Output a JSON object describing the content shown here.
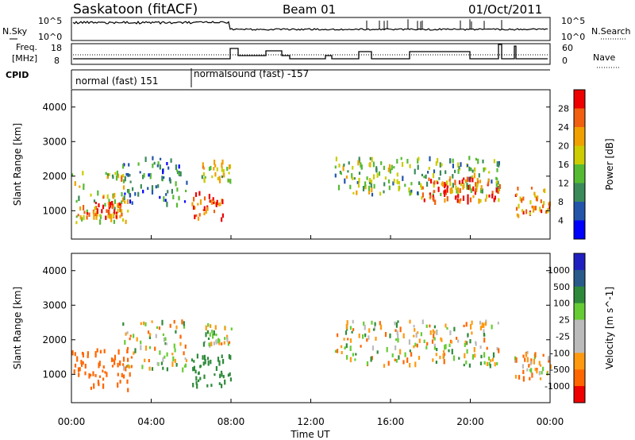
{
  "header": {
    "station": "Saskatoon (fitACF)",
    "beam": "Beam 01",
    "date": "01/Oct/2011"
  },
  "noise_panel": {
    "left_label": "N.Sky",
    "left_ticks": [
      "10^5",
      "10^0"
    ],
    "right_ticks": [
      "10^5",
      "10^0"
    ],
    "right_label": "N.Search"
  },
  "freq_panel": {
    "left_label_line1": "Freq.",
    "left_label_line2": "[MHz]",
    "left_ticks": [
      "18",
      "8"
    ],
    "right_ticks": [
      "60",
      "0"
    ],
    "right_label": "Nave"
  },
  "cpid": {
    "label": "CPID",
    "mode1": "normal (fast) 151",
    "mode2": "normalsound (fast) -157"
  },
  "colors": {
    "power_scale": [
      "#0000ff",
      "#2255aa",
      "#3a8a5a",
      "#55bb33",
      "#cccc00",
      "#f0a000",
      "#f06010",
      "#ee0000"
    ],
    "velocity_scale": [
      "#2020c0",
      "#2a5a8a",
      "#2e8a3a",
      "#66cc33",
      "#bbbbbb",
      "#bbbbbb",
      "#ff9910",
      "#ff6600",
      "#ee0000"
    ]
  },
  "chart_data": [
    {
      "type": "heatmap",
      "ylabel": "Slant Range [km]",
      "yticks": [
        "1000",
        "2000",
        "3000",
        "4000"
      ],
      "colorbar_label": "Power [dB]",
      "colorbar_ticks": [
        "4",
        "8",
        "12",
        "16",
        "20",
        "24",
        "28"
      ],
      "xticks": [
        "00:00",
        "04:00",
        "08:00",
        "12:00",
        "16:00",
        "20:00",
        "00:00"
      ],
      "x_range_hours": [
        0,
        24
      ],
      "y_range_km": [
        180,
        4500
      ],
      "c_range_db": [
        0,
        32
      ],
      "echo_regions": [
        {
          "t_start": 0.0,
          "t_end": 2.8,
          "r_low": 700,
          "r_high": 2200,
          "level_db": 18
        },
        {
          "t_start": 0.3,
          "t_end": 2.5,
          "r_low": 850,
          "r_high": 1300,
          "level_db": 26
        },
        {
          "t_start": 2.5,
          "t_end": 5.8,
          "r_low": 1200,
          "r_high": 2600,
          "level_db": 8
        },
        {
          "t_start": 6.0,
          "t_end": 7.6,
          "r_low": 800,
          "r_high": 1600,
          "level_db": 28
        },
        {
          "t_start": 6.5,
          "t_end": 8.0,
          "r_low": 1900,
          "r_high": 2500,
          "level_db": 18
        },
        {
          "t_start": 13.2,
          "t_end": 21.5,
          "r_low": 1500,
          "r_high": 2600,
          "level_db": 14
        },
        {
          "t_start": 17.5,
          "t_end": 21.5,
          "r_low": 1300,
          "r_high": 2000,
          "level_db": 26
        },
        {
          "t_start": 22.2,
          "t_end": 24.0,
          "r_low": 900,
          "r_high": 1700,
          "level_db": 24
        }
      ]
    },
    {
      "type": "heatmap",
      "ylabel": "Slant Range [km]",
      "yticks": [
        "1000",
        "2000",
        "3000",
        "4000"
      ],
      "colorbar_label": "Velocity [m s^-1]",
      "colorbar_ticks": [
        "1000",
        "500",
        "100",
        "25",
        "-25",
        "-100",
        "-500",
        "-1000"
      ],
      "xticks": [
        "00:00",
        "04:00",
        "08:00",
        "12:00",
        "16:00",
        "20:00",
        "00:00"
      ],
      "xlabel": "Time UT",
      "x_range_hours": [
        0,
        24
      ],
      "y_range_km": [
        180,
        4500
      ],
      "echo_regions": [
        {
          "t_start": 0.0,
          "t_end": 3.0,
          "r_low": 600,
          "r_high": 1800,
          "velocity": -300
        },
        {
          "t_start": 2.5,
          "t_end": 5.8,
          "r_low": 1200,
          "r_high": 2600,
          "velocity": 0
        },
        {
          "t_start": 6.0,
          "t_end": 8.0,
          "r_low": 700,
          "r_high": 1600,
          "velocity": 300
        },
        {
          "t_start": 6.5,
          "t_end": 8.0,
          "r_low": 1900,
          "r_high": 2500,
          "velocity": 0
        },
        {
          "t_start": 13.2,
          "t_end": 21.5,
          "r_low": 1300,
          "r_high": 2600,
          "velocity": 0
        },
        {
          "t_start": 22.2,
          "t_end": 24.0,
          "r_low": 900,
          "r_high": 1700,
          "velocity": -50
        }
      ]
    }
  ]
}
